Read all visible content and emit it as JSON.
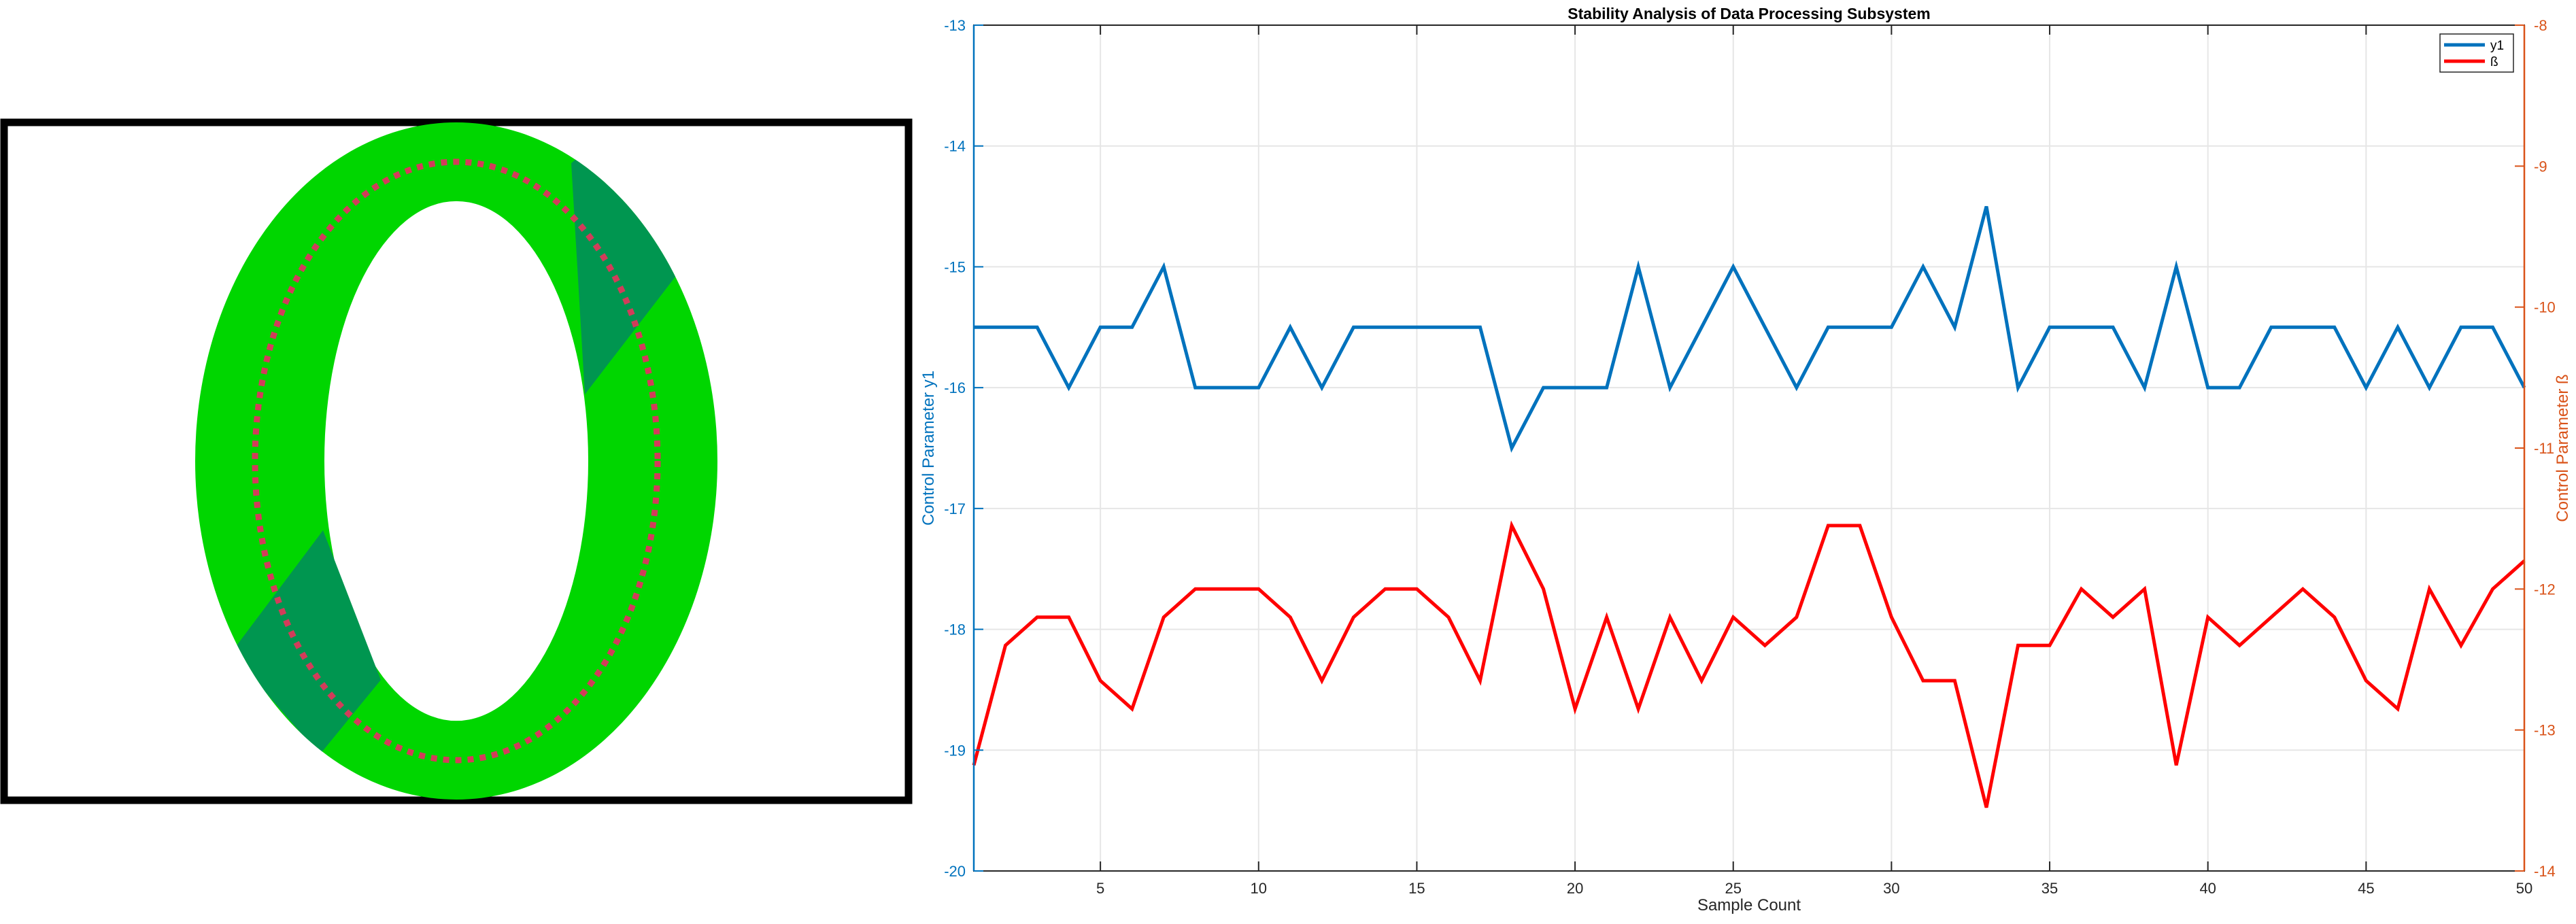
{
  "left_panel": {
    "frame_color": "#000000",
    "ring_color": "#00d600",
    "ring_dark_color": "#009650",
    "dotted_outline_color": "#d23c5a"
  },
  "chart_data": {
    "type": "line",
    "title": "Stability Analysis of Data Processing Subsystem",
    "xlabel": "Sample Count",
    "ylabel_left": "Control Parameter y1",
    "ylabel_right": "Control Parameter ß",
    "xlim": [
      1,
      50
    ],
    "xticks": [
      5,
      10,
      15,
      20,
      25,
      30,
      35,
      40,
      45,
      50
    ],
    "ylim_left": [
      -20,
      -13
    ],
    "yticks_left": [
      -20,
      -19,
      -18,
      -17,
      -16,
      -15,
      -14,
      -13
    ],
    "ylim_right": [
      -14,
      -8
    ],
    "yticks_right": [
      -14,
      -13,
      -12,
      -11,
      -10,
      -9,
      -8
    ],
    "grid": true,
    "legend_position": "top-right",
    "left_axis_color": "#0072bd",
    "right_axis_color": "#d95319",
    "series": [
      {
        "name": "y1",
        "axis": "left",
        "color": "#0072bd",
        "x": [
          1,
          2,
          3,
          4,
          5,
          6,
          7,
          8,
          9,
          10,
          11,
          12,
          13,
          14,
          15,
          16,
          17,
          18,
          19,
          20,
          21,
          22,
          23,
          24,
          25,
          26,
          27,
          28,
          29,
          30,
          31,
          32,
          33,
          34,
          35,
          36,
          37,
          38,
          39,
          40,
          41,
          42,
          43,
          44,
          45,
          46,
          47,
          48,
          49,
          50
        ],
        "values": [
          -15.5,
          -15.5,
          -15.5,
          -16,
          -15.5,
          -15.5,
          -15,
          -16,
          -16,
          -16,
          -15.5,
          -16,
          -15.5,
          -15.5,
          -15.5,
          -15.5,
          -15.5,
          -16.5,
          -16,
          -16,
          -16,
          -15,
          -16,
          -15.5,
          -15,
          -15.5,
          -16,
          -15.5,
          -15.5,
          -15.5,
          -15,
          -15.5,
          -14.5,
          -16,
          -15.5,
          -15.5,
          -15.5,
          -16,
          -15,
          -16,
          -16,
          -15.5,
          -15.5,
          -15.5,
          -16,
          -15.5,
          -16,
          -15.5,
          -15.5,
          -16
        ]
      },
      {
        "name": "ß",
        "axis": "right",
        "color": "#ff0000",
        "x": [
          1,
          2,
          3,
          4,
          5,
          6,
          7,
          8,
          9,
          10,
          11,
          12,
          13,
          14,
          15,
          16,
          17,
          18,
          19,
          20,
          21,
          22,
          23,
          24,
          25,
          26,
          27,
          28,
          29,
          30,
          31,
          32,
          33,
          34,
          35,
          36,
          37,
          38,
          39,
          40,
          41,
          42,
          43,
          44,
          45,
          46,
          47,
          48,
          49,
          50
        ],
        "values": [
          -13.25,
          -12.4,
          -12.2,
          -12.2,
          -12.65,
          -12.85,
          -12.2,
          -12,
          -12,
          -12,
          -12.2,
          -12.65,
          -12.2,
          -12,
          -12,
          -12.2,
          -12.65,
          -11.55,
          -12,
          -12.85,
          -12.2,
          -12.85,
          -12.2,
          -12.65,
          -12.2,
          -12.4,
          -12.2,
          -11.55,
          -11.55,
          -12.2,
          -12.65,
          -12.65,
          -13.55,
          -12.4,
          -12.4,
          -12,
          -12.2,
          -12,
          -13.25,
          -12.2,
          -12.4,
          -12.2,
          -12,
          -12.2,
          -12.65,
          -12.85,
          -12,
          -12.4,
          -12,
          -11.8
        ]
      }
    ]
  }
}
